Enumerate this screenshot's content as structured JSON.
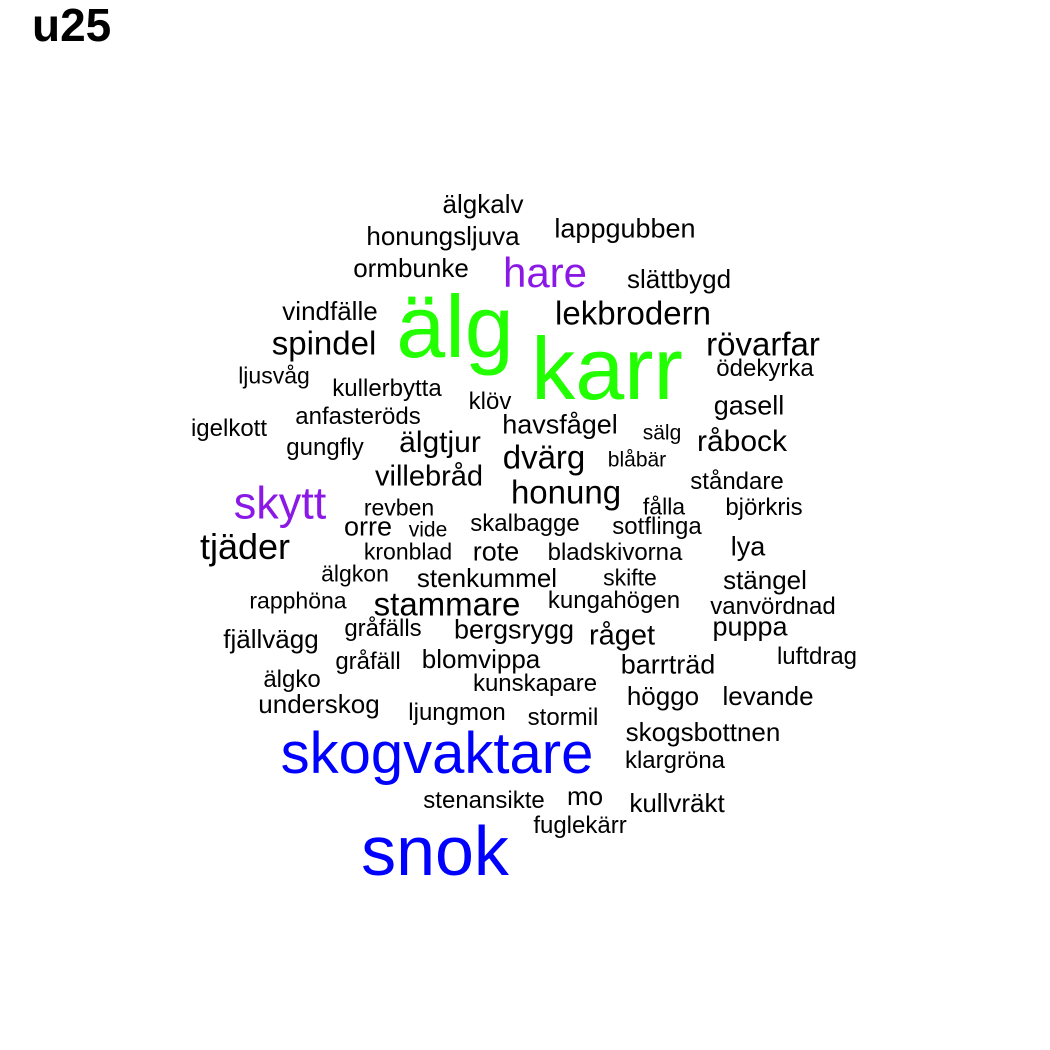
{
  "title": "u25",
  "colors": {
    "green": "#22ff00",
    "blue": "#0000ff",
    "purple": "#8a19e6",
    "black": "#000000"
  },
  "words": [
    {
      "text": "älgkalv",
      "color": "black"
    },
    {
      "text": "honungsljuva",
      "color": "black"
    },
    {
      "text": "lappgubben",
      "color": "black"
    },
    {
      "text": "ormbunke",
      "color": "black"
    },
    {
      "text": "hare",
      "color": "purple"
    },
    {
      "text": "slättbygd",
      "color": "black"
    },
    {
      "text": "vindfälle",
      "color": "black"
    },
    {
      "text": "älg",
      "color": "green"
    },
    {
      "text": "lekbrodern",
      "color": "black"
    },
    {
      "text": "spindel",
      "color": "black"
    },
    {
      "text": "karr",
      "color": "green"
    },
    {
      "text": "rövarfar",
      "color": "black"
    },
    {
      "text": "ljusvåg",
      "color": "black"
    },
    {
      "text": "ödekyrka",
      "color": "black"
    },
    {
      "text": "kullerbytta",
      "color": "black"
    },
    {
      "text": "klöv",
      "color": "black"
    },
    {
      "text": "gasell",
      "color": "black"
    },
    {
      "text": "igelkott",
      "color": "black"
    },
    {
      "text": "anfasteröds",
      "color": "black"
    },
    {
      "text": "havsfågel",
      "color": "black"
    },
    {
      "text": "sälg",
      "color": "black"
    },
    {
      "text": "råbock",
      "color": "black"
    },
    {
      "text": "gungfly",
      "color": "black"
    },
    {
      "text": "älgtjur",
      "color": "black"
    },
    {
      "text": "dvärg",
      "color": "black"
    },
    {
      "text": "blåbär",
      "color": "black"
    },
    {
      "text": "villebråd",
      "color": "black"
    },
    {
      "text": "ståndare",
      "color": "black"
    },
    {
      "text": "skytt",
      "color": "purple"
    },
    {
      "text": "honung",
      "color": "black"
    },
    {
      "text": "revben",
      "color": "black"
    },
    {
      "text": "fålla",
      "color": "black"
    },
    {
      "text": "björkris",
      "color": "black"
    },
    {
      "text": "orre",
      "color": "black"
    },
    {
      "text": "vide",
      "color": "black"
    },
    {
      "text": "skalbagge",
      "color": "black"
    },
    {
      "text": "sotflinga",
      "color": "black"
    },
    {
      "text": "tjäder",
      "color": "black"
    },
    {
      "text": "kronblad",
      "color": "black"
    },
    {
      "text": "rote",
      "color": "black"
    },
    {
      "text": "bladskivorna",
      "color": "black"
    },
    {
      "text": "lya",
      "color": "black"
    },
    {
      "text": "älgkon",
      "color": "black"
    },
    {
      "text": "stenkummel",
      "color": "black"
    },
    {
      "text": "skifte",
      "color": "black"
    },
    {
      "text": "stängel",
      "color": "black"
    },
    {
      "text": "rapphöna",
      "color": "black"
    },
    {
      "text": "stammare",
      "color": "black"
    },
    {
      "text": "kungahögen",
      "color": "black"
    },
    {
      "text": "vanvördnad",
      "color": "black"
    },
    {
      "text": "puppa",
      "color": "black"
    },
    {
      "text": "fjällvägg",
      "color": "black"
    },
    {
      "text": "gråfälls",
      "color": "black"
    },
    {
      "text": "bergsrygg",
      "color": "black"
    },
    {
      "text": "råget",
      "color": "black"
    },
    {
      "text": "gråfäll",
      "color": "black"
    },
    {
      "text": "blomvippa",
      "color": "black"
    },
    {
      "text": "barrträd",
      "color": "black"
    },
    {
      "text": "luftdrag",
      "color": "black"
    },
    {
      "text": "älgko",
      "color": "black"
    },
    {
      "text": "kunskapare",
      "color": "black"
    },
    {
      "text": "höggo",
      "color": "black"
    },
    {
      "text": "levande",
      "color": "black"
    },
    {
      "text": "underskog",
      "color": "black"
    },
    {
      "text": "ljungmon",
      "color": "black"
    },
    {
      "text": "stormil",
      "color": "black"
    },
    {
      "text": "skogsbottnen",
      "color": "black"
    },
    {
      "text": "skogvaktare",
      "color": "blue"
    },
    {
      "text": "klargröna",
      "color": "black"
    },
    {
      "text": "stenansikte",
      "color": "black"
    },
    {
      "text": "mo",
      "color": "black"
    },
    {
      "text": "kullvräkt",
      "color": "black"
    },
    {
      "text": "fuglekärr",
      "color": "black"
    },
    {
      "text": "snok",
      "color": "blue"
    }
  ]
}
